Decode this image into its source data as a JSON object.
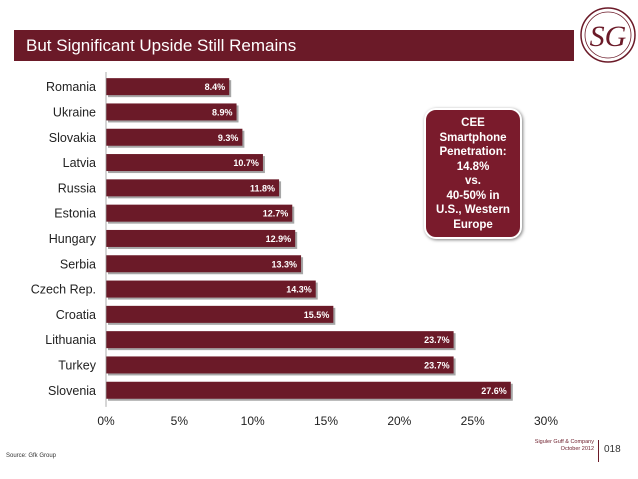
{
  "header": {
    "title": "But Significant Upside Still Remains"
  },
  "logo": {
    "text": "SG"
  },
  "chart_data": {
    "type": "bar",
    "orientation": "horizontal",
    "categories": [
      "Romania",
      "Ukraine",
      "Slovakia",
      "Latvia",
      "Russia",
      "Estonia",
      "Hungary",
      "Serbia",
      "Czech Rep.",
      "Croatia",
      "Lithuania",
      "Turkey",
      "Slovenia"
    ],
    "values": [
      8.4,
      8.9,
      9.3,
      10.7,
      11.8,
      12.7,
      12.9,
      13.3,
      14.3,
      15.5,
      23.7,
      23.7,
      27.6
    ],
    "data_labels": [
      "8.4%",
      "8.9%",
      "9.3%",
      "10.7%",
      "11.8%",
      "12.7%",
      "12.9%",
      "13.3%",
      "14.3%",
      "15.5%",
      "23.7%",
      "23.7%",
      "27.6%"
    ],
    "xlim": [
      0,
      30
    ],
    "xticks": [
      "0%",
      "5%",
      "10%",
      "15%",
      "20%",
      "25%",
      "30%"
    ],
    "grid": false,
    "bar_color": "#6b1a28"
  },
  "callout": {
    "lines": [
      "CEE",
      "Smartphone",
      "Penetration:",
      "14.8%",
      "vs.",
      "40-50% in",
      "U.S., Western",
      "Europe"
    ]
  },
  "footer": {
    "source": "Source: Gfk Group",
    "company": "Siguler Guff & Company",
    "date": "October 2012",
    "page": "018"
  },
  "colors": {
    "brand": "#6b1a28",
    "callout": "#7a1b2c"
  }
}
